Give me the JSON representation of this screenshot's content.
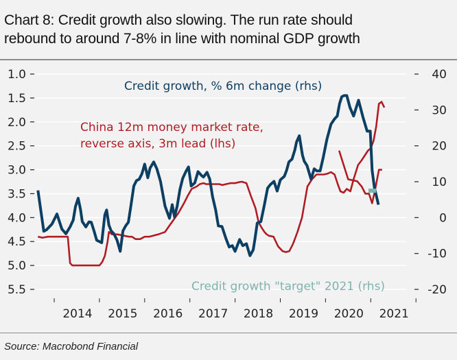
{
  "header": {
    "title_line1": "Chart 8: Credit growth also slowing. The run rate should",
    "title_line2": "rebound to around 7-8% in line with nominal GDP growth"
  },
  "footer": {
    "source": "Source: Macrobond Financial"
  },
  "colors": {
    "credit": "#0d3f63",
    "rate": "#b01c24",
    "target": "#7fb3ad",
    "grid": "#ffffff",
    "background": "#f2f2f2"
  },
  "chart_data": {
    "type": "line",
    "title": "Chart 8: Credit growth also slowing. The run rate should rebound to around 7-8% in line with nominal GDP growth",
    "xlabel": "",
    "x_ticks": [
      "2014",
      "2015",
      "2016",
      "2017",
      "2018",
      "2019",
      "2020",
      "2021"
    ],
    "x_range": [
      2013.6,
      2021.95
    ],
    "left_axis": {
      "label": "lhs (reversed)",
      "reversed": true,
      "range": [
        1.0,
        5.5
      ],
      "ticks": [
        "1.0",
        "1.5",
        "2.0",
        "2.5",
        "3.0",
        "3.5",
        "4.0",
        "4.5",
        "5.0",
        "5.5"
      ]
    },
    "right_axis": {
      "label": "rhs",
      "range": [
        -20,
        40
      ],
      "ticks": [
        "40",
        "30",
        "20",
        "10",
        "0",
        "-10",
        "-20"
      ]
    },
    "grid": true,
    "legend": [
      {
        "name": "Credit growth, % 6m change (rhs)",
        "series": "credit"
      },
      {
        "name": "China 12m money market rate, reverse axis, 3m lead (lhs)",
        "series": "rate"
      },
      {
        "name": "Credit growth \"target\" 2021 (rhs)",
        "series": "target"
      }
    ],
    "series": [
      {
        "name": "Credit growth, % 6m change (rhs)",
        "key": "credit",
        "axis": "right",
        "x": [
          2013.64,
          2013.77,
          2013.83,
          2013.95,
          2014.06,
          2014.17,
          2014.26,
          2014.35,
          2014.42,
          2014.47,
          2014.53,
          2014.58,
          2014.62,
          2014.7,
          2014.77,
          2014.82,
          2014.88,
          2014.94,
          2015.05,
          2015.12,
          2015.16,
          2015.21,
          2015.26,
          2015.32,
          2015.39,
          2015.46,
          2015.52,
          2015.58,
          2015.64,
          2015.7,
          2015.76,
          2015.82,
          2015.88,
          2015.94,
          2016.0,
          2016.04,
          2016.07,
          2016.12,
          2016.2,
          2016.27,
          2016.35,
          2016.45,
          2016.55,
          2016.61,
          2016.66,
          2016.72,
          2016.78,
          2016.84,
          2016.91,
          2016.97,
          2017.03,
          2017.11,
          2017.18,
          2017.26,
          2017.3,
          2017.38,
          2017.44,
          2017.5,
          2017.57,
          2017.63,
          2017.71,
          2017.8,
          2017.87,
          2017.94,
          2018.0,
          2018.1,
          2018.17,
          2018.25,
          2018.33,
          2018.4,
          2018.44,
          2018.49,
          2018.57,
          2018.64,
          2018.72,
          2018.78,
          2018.86,
          2018.93,
          2019.0,
          2019.09,
          2019.14,
          2019.19,
          2019.26,
          2019.32,
          2019.36,
          2019.42,
          2019.49,
          2019.53,
          2019.59,
          2019.68,
          2019.75,
          2019.81,
          2019.88,
          2019.95,
          2020.03,
          2020.12,
          2020.2,
          2020.26,
          2020.31,
          2020.36,
          2020.41,
          2020.47,
          2020.54,
          2020.62,
          2020.73,
          2020.83,
          2020.92,
          2020.99,
          2021.03,
          2021.08,
          2021.17
        ],
        "values": [
          7.6,
          -3.8,
          -3.4,
          -1.8,
          1.0,
          -3.2,
          -4.5,
          -2.6,
          -0.7,
          3.1,
          5.4,
          2.4,
          -1.1,
          -2.6,
          -1.2,
          -1.3,
          -3.7,
          -6.3,
          -7.0,
          0.8,
          2.1,
          -2.1,
          -3.7,
          -4.5,
          -6.3,
          -9.4,
          -3.7,
          -2.3,
          -1.3,
          3.6,
          8.8,
          10.3,
          10.7,
          12.2,
          14.9,
          12.8,
          11.1,
          13.8,
          15.5,
          13.6,
          10.1,
          3.2,
          -0.2,
          3.6,
          0.2,
          3.2,
          7.8,
          10.9,
          12.8,
          14.1,
          8.8,
          9.7,
          12.8,
          11.7,
          11.3,
          12.6,
          10.7,
          5.9,
          2.1,
          -2.3,
          -2.5,
          -5.9,
          -8.2,
          -7.8,
          -9.4,
          -6.1,
          -7.8,
          -7.3,
          -10.6,
          -9.0,
          -5.9,
          -1.5,
          -1.1,
          3.1,
          8.2,
          9.2,
          10.1,
          7.4,
          10.5,
          11.5,
          13.2,
          15.5,
          16.3,
          18.8,
          21.1,
          22.8,
          17.4,
          15.7,
          14.5,
          10.7,
          13.6,
          13.0,
          13.0,
          16.8,
          21.8,
          26.0,
          27.5,
          28.3,
          31.7,
          33.7,
          34.0,
          34.0,
          30.7,
          28.3,
          32.7,
          27.9,
          24.1,
          24.1,
          13.2,
          8.4,
          3.6
        ]
      },
      {
        "name": "China 12m money market rate, reverse axis, 3m lead (lhs)",
        "key": "rate",
        "axis": "left",
        "x": [
          2013.64,
          2013.74,
          2013.86,
          2014.0,
          2014.12,
          2014.22,
          2014.3,
          2014.35,
          2014.4,
          2014.55,
          2014.7,
          2014.85,
          2015.0,
          2015.06,
          2015.12,
          2015.18,
          2015.21,
          2015.28,
          2015.4,
          2015.55,
          2015.65,
          2015.72,
          2015.8,
          2015.9,
          2016.0,
          2016.1,
          2016.3,
          2016.45,
          2016.6,
          2016.75,
          2016.87,
          2016.95,
          2017.04,
          2017.15,
          2017.22,
          2017.3,
          2017.36,
          2017.45,
          2017.55,
          2017.65,
          2017.72,
          2017.8,
          2017.9,
          2018.0,
          2018.08,
          2018.15,
          2018.25,
          2018.35,
          2018.45,
          2018.52,
          2018.58,
          2018.65,
          2018.7,
          2018.75,
          2018.85,
          2018.95,
          2019.05,
          2019.12,
          2019.2,
          2019.28,
          2019.38,
          2019.48,
          2019.6,
          2019.7,
          2019.8,
          2019.88,
          2019.96,
          2020.05,
          2020.12,
          2020.2,
          2020.27,
          2020.33,
          2020.4,
          2020.47,
          2020.55,
          2020.62,
          2020.72,
          2020.8,
          2020.87,
          2020.94,
          2021.0,
          2021.06,
          2021.12,
          2021.18,
          2021.24,
          2021.3
        ],
        "values": [
          4.4,
          4.42,
          4.4,
          4.4,
          4.4,
          4.4,
          4.4,
          4.95,
          5.0,
          5.0,
          5.0,
          5.0,
          5.0,
          4.93,
          4.8,
          4.5,
          4.3,
          4.35,
          4.35,
          4.38,
          4.4,
          4.4,
          4.45,
          4.45,
          4.4,
          4.4,
          4.35,
          4.3,
          4.1,
          3.9,
          3.7,
          3.55,
          3.4,
          3.35,
          3.3,
          3.28,
          3.3,
          3.3,
          3.3,
          3.3,
          3.32,
          3.3,
          3.28,
          3.28,
          3.26,
          3.25,
          3.28,
          3.55,
          3.8,
          4.1,
          4.2,
          4.3,
          4.35,
          4.38,
          4.4,
          4.6,
          4.7,
          4.72,
          4.7,
          4.55,
          4.3,
          4.0,
          3.35,
          3.2,
          3.1,
          3.1,
          3.1,
          3.08,
          3.05,
          3.1,
          3.3,
          3.45,
          3.48,
          3.4,
          3.45,
          3.2,
          2.9,
          2.8,
          2.7,
          2.6,
          2.55,
          2.4,
          2.1,
          1.62,
          1.58,
          1.7
        ],
        "tail_x": [
          2020.3,
          2020.4,
          2020.5,
          2020.6,
          2020.7,
          2020.8,
          2020.88,
          2020.96,
          2021.03,
          2021.1,
          2021.18,
          2021.25
        ],
        "tail_values": [
          2.6,
          2.9,
          3.2,
          3.22,
          3.24,
          3.35,
          3.5,
          3.5,
          3.7,
          3.4,
          3.0,
          3.0
        ]
      },
      {
        "name": "Credit growth \"target\" 2021 (rhs)",
        "key": "target",
        "axis": "right",
        "x": [
          2020.95,
          2021.12
        ],
        "values": [
          7.5,
          7.5
        ]
      }
    ]
  }
}
